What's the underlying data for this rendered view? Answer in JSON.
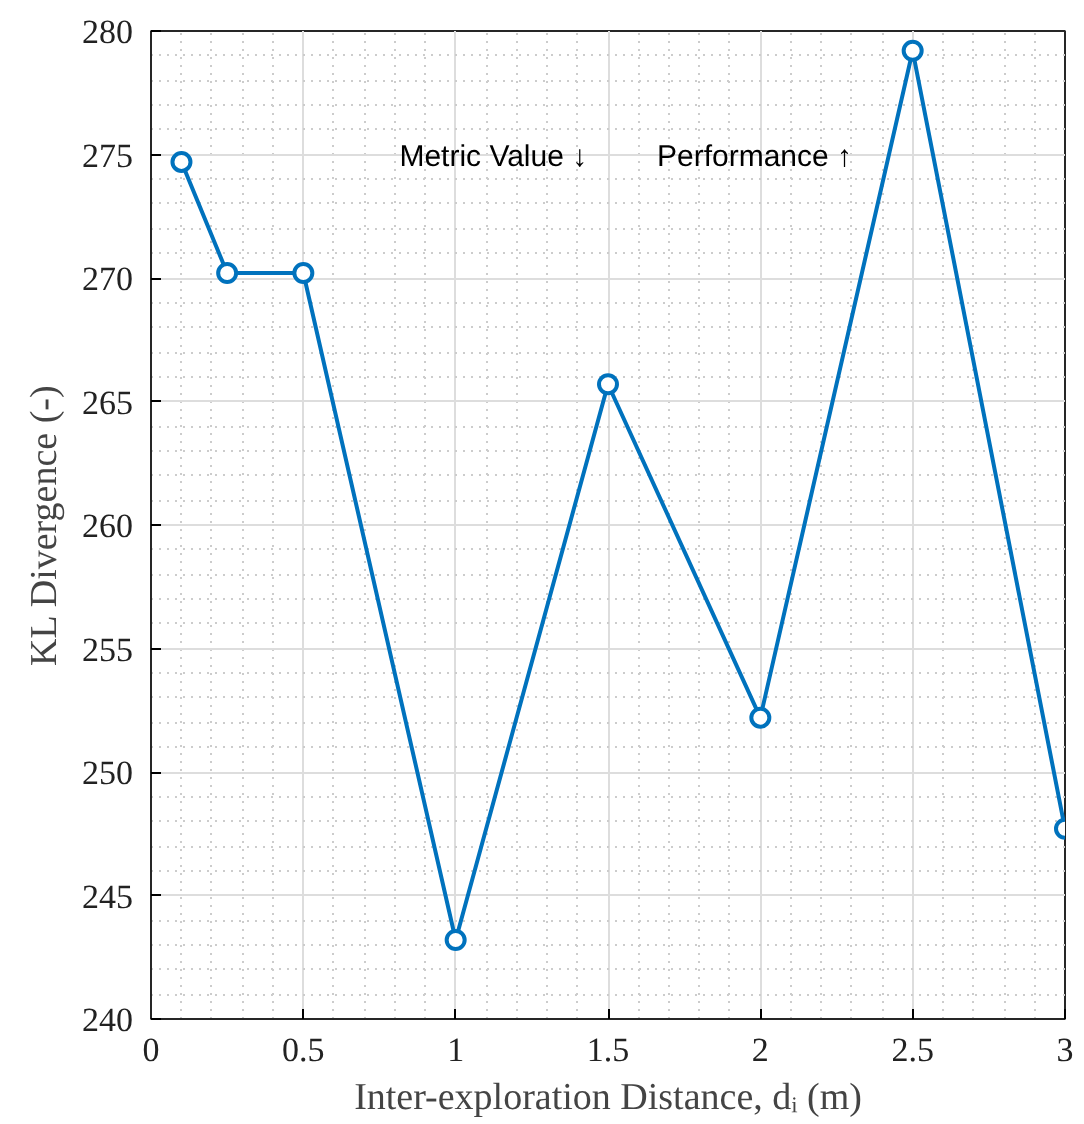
{
  "chart_data": {
    "type": "line",
    "xlabel": "Inter-exploration Distance, dᵢ (m)",
    "ylabel": "KL Divergence (-)",
    "x": [
      0.1,
      0.25,
      0.5,
      1,
      1.5,
      2,
      2.5,
      3
    ],
    "series": [
      {
        "color": "#0072bd",
        "values": [
          274.7,
          270.2,
          270.2,
          243.2,
          265.7,
          252.2,
          279.2,
          247.7
        ]
      }
    ],
    "xlim": [
      0,
      3
    ],
    "ylim": [
      240,
      280
    ],
    "xticks": [
      0,
      0.5,
      1,
      1.5,
      2,
      2.5,
      3
    ],
    "yticks": [
      240,
      245,
      250,
      255,
      260,
      265,
      270,
      275,
      280
    ],
    "grid": true,
    "marker": "circle",
    "line_style": "solid",
    "annotations": [
      "Metric Value ↓",
      "Performance ↑"
    ]
  }
}
